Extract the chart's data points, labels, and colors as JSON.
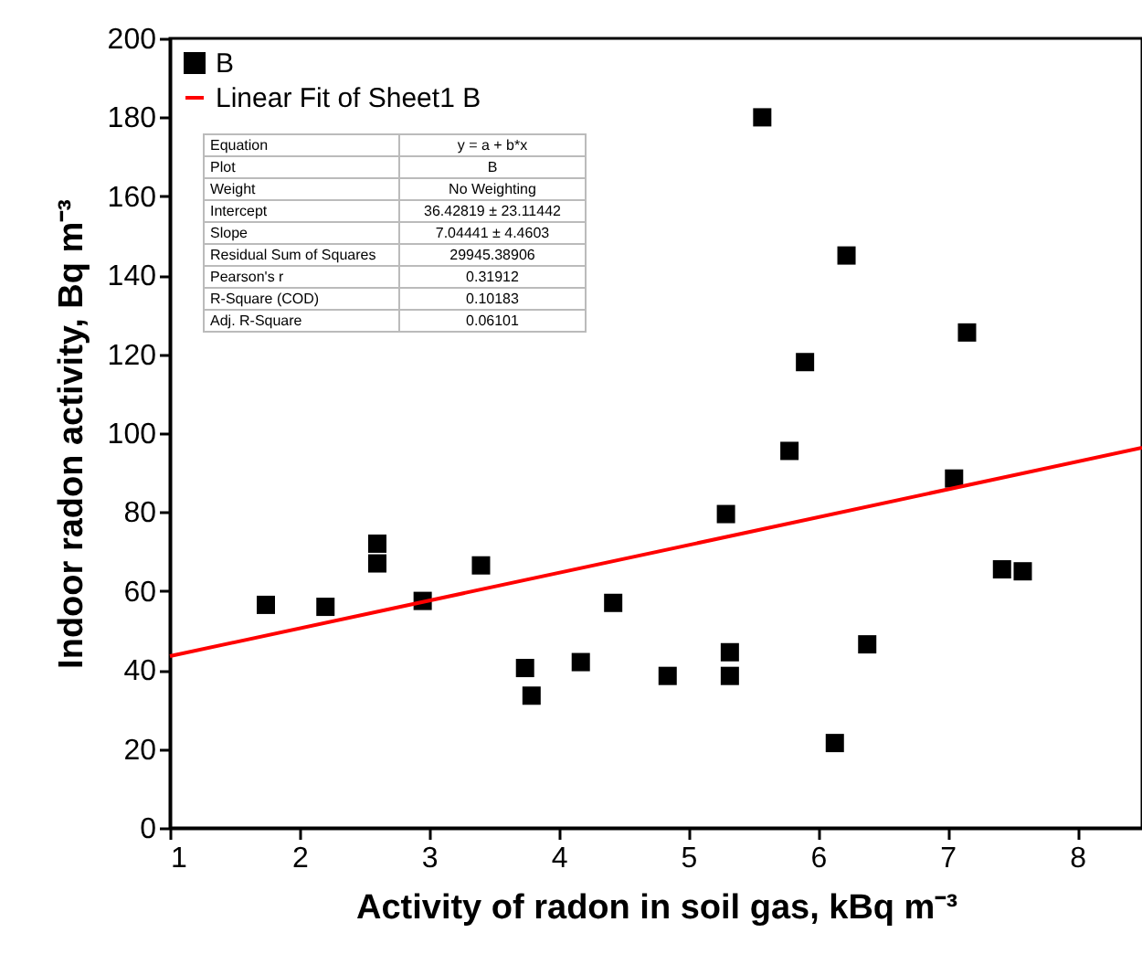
{
  "chart_data": {
    "type": "scatter",
    "xlabel": "Activity of radon in soil gas, kBq m⁻³",
    "ylabel": "Indoor radon activity, Bq m⁻³",
    "xlim": [
      1,
      8.5
    ],
    "xticks": [
      1,
      2,
      3,
      4,
      5,
      6,
      7,
      8
    ],
    "ylim": [
      0,
      200
    ],
    "yticks": [
      0,
      20,
      40,
      60,
      80,
      100,
      120,
      140,
      160,
      180,
      200
    ],
    "grid": false,
    "legend": "top left",
    "series": [
      {
        "name": "B",
        "marker": "square",
        "color": "#000000",
        "x": [
          1.74,
          2.2,
          2.6,
          2.6,
          2.95,
          3.4,
          3.74,
          3.79,
          4.17,
          4.42,
          4.84,
          5.29,
          5.32,
          5.32,
          5.57,
          5.78,
          5.9,
          6.13,
          6.22,
          6.38,
          7.05,
          7.15,
          7.42,
          7.58
        ],
        "values": [
          56.5,
          56,
          72,
          67,
          57.5,
          66.5,
          40.5,
          33.5,
          42,
          57,
          38.5,
          79.5,
          44.5,
          38.5,
          180,
          95.5,
          118,
          21.5,
          145,
          46.5,
          88.5,
          125.5,
          65.5,
          65
        ]
      },
      {
        "name": "Linear Fit of Sheet1 B",
        "type": "line",
        "color": "#ff0000",
        "x": [
          1,
          8.5
        ],
        "values": [
          43.5,
          96.3
        ]
      }
    ],
    "annotations": [
      "Equation",
      "y = a + b*x",
      "Plot",
      "B",
      "Weight",
      "No Weighting",
      "Intercept",
      "36.42819 ± 23.11442",
      "Slope",
      "7.04441 ± 4.4603",
      "Residual Sum of Squares",
      "29945.38906",
      "Pearson's r",
      "0.31912",
      "R-Square (COD)",
      "0.10183",
      "Adj. R-Square",
      "0.06101"
    ]
  }
}
